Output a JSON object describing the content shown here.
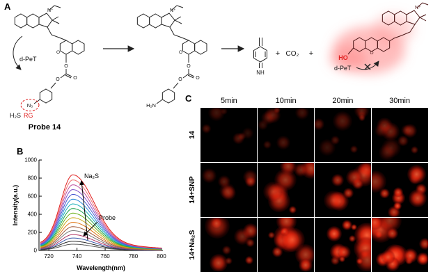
{
  "panels": {
    "a": "A",
    "b": "B",
    "c": "C"
  },
  "scheme": {
    "dpet_label": "d-PeT",
    "h2s_label": "H₂S",
    "rg_label": "RG",
    "probe_label": "Probe 14",
    "plus": "+",
    "co2_label": "CO₂",
    "nh_label": "NH",
    "ho_label": "HO",
    "h2n_label": "H₂N",
    "n3_label": "N₃",
    "n_plus": "N⁺",
    "atom_o": "O"
  },
  "chart_data": {
    "type": "line",
    "title": "",
    "xlabel": "Wavelength(nm)",
    "ylabel": "Intensity(a.u.)",
    "xlim": [
      713,
      801
    ],
    "ylim": [
      0,
      1000
    ],
    "x_ticks": [
      720,
      740,
      760,
      780,
      800
    ],
    "y_ticks": [
      0,
      200,
      400,
      600,
      800,
      1000
    ],
    "peak_nm": 737,
    "grid": false,
    "legend": false,
    "annotations": [
      {
        "text": "Na₂S"
      },
      {
        "text": "Probe"
      }
    ],
    "series": [
      {
        "peak_intensity": 820,
        "color": "#e02020"
      },
      {
        "peak_intensity": 765,
        "color": "#f07070"
      },
      {
        "peak_intensity": 712,
        "color": "#c050a0"
      },
      {
        "peak_intensity": 660,
        "color": "#8050c8"
      },
      {
        "peak_intensity": 608,
        "color": "#4858d0"
      },
      {
        "peak_intensity": 556,
        "color": "#2888d8"
      },
      {
        "peak_intensity": 505,
        "color": "#18b0b8"
      },
      {
        "peak_intensity": 455,
        "color": "#18a048"
      },
      {
        "peak_intensity": 405,
        "color": "#68b018"
      },
      {
        "peak_intensity": 355,
        "color": "#c8a818"
      },
      {
        "peak_intensity": 305,
        "color": "#e07818"
      },
      {
        "peak_intensity": 258,
        "color": "#a05838"
      },
      {
        "peak_intensity": 215,
        "color": "#787878"
      },
      {
        "peak_intensity": 172,
        "color": "#b03060"
      },
      {
        "peak_intensity": 135,
        "color": "#3858a8"
      },
      {
        "peak_intensity": 100,
        "color": "#282828"
      },
      {
        "peak_intensity": 68,
        "color": "#585858"
      }
    ]
  },
  "micrograph": {
    "columns": [
      "5min",
      "10min",
      "20min",
      "30min"
    ],
    "rows": [
      {
        "label": "14",
        "blob_count": 8,
        "blob_max_radius": 5,
        "brightness": 0.4
      },
      {
        "label": "14+SNP",
        "blob_count": 9,
        "blob_max_radius": 6,
        "brightness": 0.85
      },
      {
        "label": "14+Na₂S",
        "blob_count": 13,
        "blob_max_radius": 7,
        "brightness": 1.0
      }
    ],
    "time_brightness": [
      0.7,
      0.85,
      0.95,
      1.05
    ],
    "background": "#000000",
    "fluorescence_color": "#ff3c1e"
  }
}
